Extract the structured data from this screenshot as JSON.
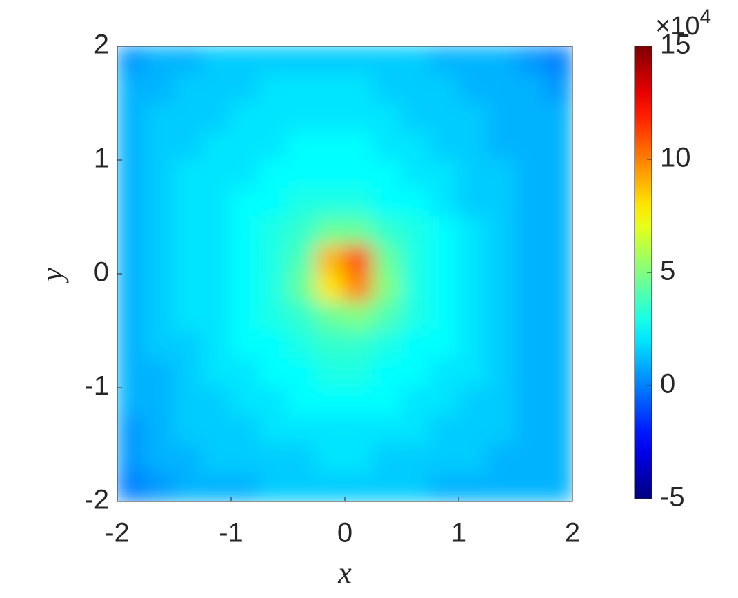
{
  "chart_data": {
    "type": "heatmap",
    "colormap": "jet",
    "x_label": "x",
    "y_label": "y",
    "xlim": [
      -2,
      2
    ],
    "ylim": [
      -2,
      2
    ],
    "xticks": [
      -2,
      -1,
      0,
      1,
      2
    ],
    "yticks": [
      -2,
      -1,
      0,
      1,
      2
    ],
    "x": [
      -1.875,
      -1.625,
      -1.375,
      -1.125,
      -0.875,
      -0.625,
      -0.375,
      -0.125,
      0.125,
      0.375,
      0.625,
      0.875,
      1.125,
      1.375,
      1.625,
      1.875
    ],
    "y": [
      1.875,
      1.625,
      1.375,
      1.125,
      0.875,
      0.625,
      0.375,
      0.125,
      -0.125,
      -0.375,
      -0.625,
      -0.875,
      -1.125,
      -1.375,
      -1.625,
      -1.875
    ],
    "z": [
      [
        0.5,
        1,
        1,
        1.5,
        1.5,
        1.5,
        1.5,
        1.5,
        1.5,
        1.5,
        1.5,
        1,
        1,
        1,
        0.5,
        0
      ],
      [
        1,
        1,
        1.5,
        1.5,
        1.5,
        2,
        2,
        2,
        2,
        1.5,
        1.5,
        1.5,
        1,
        1,
        1,
        0.5
      ],
      [
        1,
        1.5,
        1.5,
        1.5,
        2,
        2,
        2,
        2,
        2,
        2,
        1.5,
        1.5,
        1.5,
        1,
        1,
        1
      ],
      [
        1,
        1.5,
        1.5,
        2,
        2,
        2,
        2.5,
        2.5,
        2.5,
        2,
        2,
        1.5,
        1.5,
        1,
        1,
        1
      ],
      [
        1,
        1.5,
        2,
        2,
        2,
        2.5,
        2.5,
        2.5,
        2.5,
        2.5,
        2,
        2,
        1.5,
        1.5,
        1,
        1
      ],
      [
        1,
        1.5,
        2,
        2,
        2.5,
        2.5,
        3,
        3,
        3,
        2.5,
        2.5,
        2,
        1.5,
        1.5,
        1,
        1
      ],
      [
        1,
        1.5,
        2,
        2,
        2.5,
        3,
        3.5,
        4.5,
        4.5,
        3.5,
        3,
        2.5,
        2,
        1.5,
        1,
        1
      ],
      [
        1,
        1.5,
        2,
        2,
        2.5,
        3,
        4,
        9,
        11,
        4.5,
        3,
        2.5,
        2,
        1.5,
        1,
        1
      ],
      [
        1,
        1.5,
        2,
        2,
        2.5,
        3,
        4.5,
        8,
        10,
        5,
        3,
        2.5,
        2,
        1.5,
        1,
        1
      ],
      [
        1,
        1.5,
        2,
        2,
        2.5,
        3,
        3.5,
        4.5,
        5,
        4,
        3,
        2.5,
        2,
        1.5,
        1,
        1
      ],
      [
        1,
        1.5,
        1.5,
        2,
        2.5,
        2.5,
        3,
        3.5,
        3.5,
        3,
        2.5,
        2.5,
        2,
        1.5,
        1,
        1
      ],
      [
        1,
        1,
        1.5,
        2,
        2,
        2.5,
        2.5,
        3,
        3,
        2.5,
        2.5,
        2,
        2,
        1.5,
        1,
        1
      ],
      [
        1,
        1,
        1.5,
        1.5,
        2,
        2,
        2.5,
        2.5,
        2.5,
        2.5,
        2,
        2,
        1.5,
        1.5,
        1,
        1
      ],
      [
        0.5,
        1,
        1.5,
        1.5,
        1.5,
        2,
        2,
        2,
        2,
        2,
        2,
        1.5,
        1.5,
        1.5,
        1,
        1
      ],
      [
        0.5,
        1,
        1,
        1.5,
        1.5,
        1.5,
        1.5,
        2,
        2,
        1.5,
        1.5,
        1.5,
        1.5,
        1,
        1,
        1
      ],
      [
        0,
        0.5,
        1,
        1,
        1,
        1.5,
        1.5,
        1.5,
        1.5,
        1.5,
        1.5,
        1,
        1,
        1,
        1,
        1
      ]
    ],
    "clim": [
      -5,
      15
    ],
    "cticks": [
      -5,
      0,
      5,
      10,
      15
    ],
    "colorbar_multiplier": {
      "base": "×10",
      "exponent": "4"
    }
  }
}
